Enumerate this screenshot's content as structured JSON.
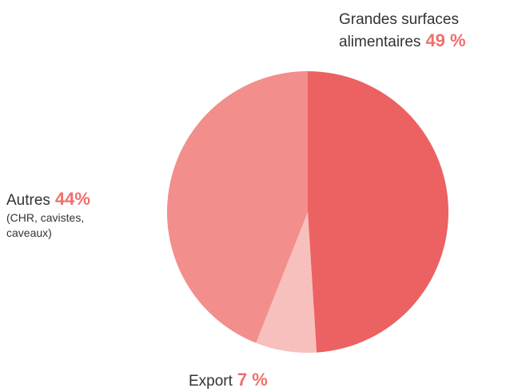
{
  "chart_data": {
    "type": "pie",
    "categories": [
      "Grandes surfaces alimentaires",
      "Export",
      "Autres"
    ],
    "values": [
      49,
      7,
      44
    ],
    "value_labels": [
      "49 %",
      "7 %",
      "44%"
    ],
    "colors": [
      "#ec6262",
      "#f7c0bd",
      "#f28e8c"
    ],
    "annotation": "(CHR, cavistes, caveaux)"
  }
}
